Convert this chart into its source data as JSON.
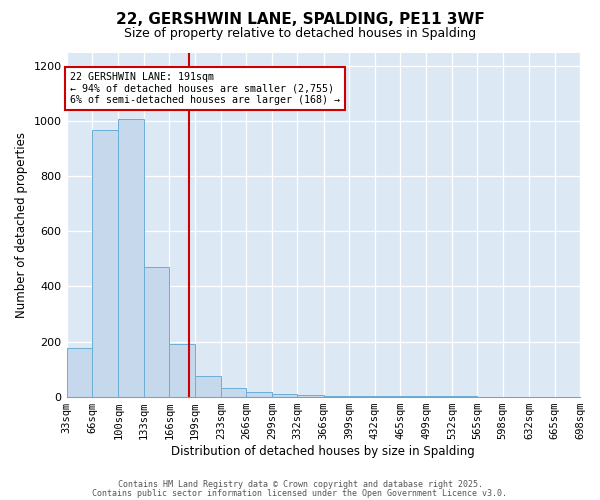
{
  "title_line1": "22, GERSHWIN LANE, SPALDING, PE11 3WF",
  "title_line2": "Size of property relative to detached houses in Spalding",
  "xlabel": "Distribution of detached houses by size in Spalding",
  "ylabel": "Number of detached properties",
  "annotation_line1": "22 GERSHWIN LANE: 191sqm",
  "annotation_line2": "← 94% of detached houses are smaller (2,755)",
  "annotation_line3": "6% of semi-detached houses are larger (168) →",
  "property_size": 191,
  "bin_edges": [
    33,
    66,
    100,
    133,
    166,
    199,
    233,
    266,
    299,
    332,
    366,
    399,
    432,
    465,
    499,
    532,
    565,
    598,
    632,
    665,
    698
  ],
  "counts": [
    175,
    970,
    1010,
    470,
    190,
    75,
    30,
    15,
    10,
    5,
    3,
    2,
    2,
    1,
    1,
    1,
    0,
    0,
    0,
    0
  ],
  "bar_facecolor": "#c5d8ec",
  "bar_edgecolor": "#6aaed6",
  "vline_color": "#cc0000",
  "annotation_box_edgecolor": "#cc0000",
  "plot_bg_color": "#dce9f5",
  "fig_bg_color": "#ffffff",
  "grid_color": "#ffffff",
  "ylim": [
    0,
    1250
  ],
  "yticks": [
    0,
    200,
    400,
    600,
    800,
    1000,
    1200
  ],
  "tick_fontsize": 7.5,
  "label_fontsize": 8.5,
  "title1_fontsize": 11,
  "title2_fontsize": 9,
  "footnote1": "Contains HM Land Registry data © Crown copyright and database right 2025.",
  "footnote2": "Contains public sector information licensed under the Open Government Licence v3.0."
}
